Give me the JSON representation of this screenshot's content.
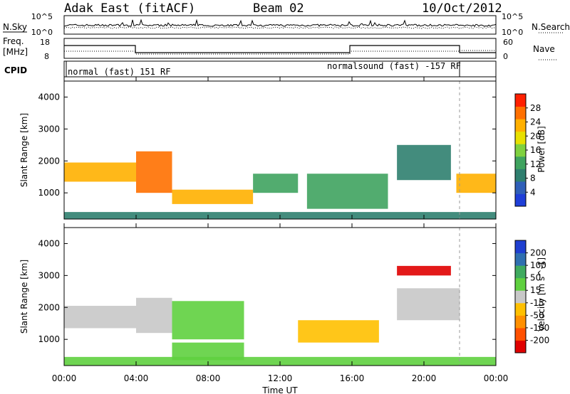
{
  "header": {
    "radar": "Adak East (fitACF)",
    "beam": "Beam 02",
    "date": "10/Oct/2012"
  },
  "noise_panel": {
    "left_label": "N.Sky",
    "right_label": "N.Search",
    "y_ticks": [
      "10^5",
      "10^0"
    ]
  },
  "freq_panel": {
    "left_label_line1": "Freq.",
    "left_label_line2": "[MHz]",
    "right_label": "Nave",
    "left_ticks": [
      "18",
      "8"
    ],
    "right_ticks": [
      "60",
      "0"
    ]
  },
  "cpid_panel": {
    "label": "CPID",
    "modes": [
      "normal (fast) 151 RF",
      "normalsound (fast) -157 RF"
    ]
  },
  "x_axis": {
    "label": "Time UT",
    "ticks": [
      "00:00",
      "04:00",
      "08:00",
      "12:00",
      "16:00",
      "20:00",
      "00:00"
    ]
  },
  "chart_data": [
    {
      "type": "heatmap",
      "title": "",
      "xlabel": "Time UT",
      "ylabel": "Slant Range [km]",
      "x_unit": "hours UT",
      "xlim": [
        0,
        24
      ],
      "ylim": [
        180,
        4500
      ],
      "y_ticks": [
        1000,
        2000,
        3000,
        4000
      ],
      "colorbar": {
        "label": "Power [dB]",
        "range": [
          0,
          32
        ],
        "ticks": [
          4,
          8,
          12,
          16,
          20,
          24,
          28
        ],
        "colors": [
          "#1f3fd8",
          "#2f5fb8",
          "#2f7f6f",
          "#3fa35f",
          "#7fd13f",
          "#e8e000",
          "#ffb000",
          "#ff7000",
          "#ff2000"
        ]
      },
      "features": [
        {
          "t": [
            0.0,
            4.0
          ],
          "range_km": [
            1350,
            1950
          ],
          "value": 22
        },
        {
          "t": [
            4.0,
            6.0
          ],
          "range_km": [
            1000,
            2300
          ],
          "value": 26
        },
        {
          "t": [
            6.0,
            10.5
          ],
          "range_km": [
            650,
            1100
          ],
          "value": 24
        },
        {
          "t": [
            10.5,
            13.0
          ],
          "range_km": [
            1000,
            1600
          ],
          "value": 12
        },
        {
          "t": [
            13.5,
            18.0
          ],
          "range_km": [
            500,
            1600
          ],
          "value": 14
        },
        {
          "t": [
            18.5,
            21.5
          ],
          "range_km": [
            1400,
            2500
          ],
          "value": 8
        },
        {
          "t": [
            21.8,
            24.0
          ],
          "range_km": [
            1000,
            1600
          ],
          "value": 22
        },
        {
          "t": [
            0.0,
            24.0
          ],
          "range_km": [
            180,
            400
          ],
          "value": 10
        }
      ]
    },
    {
      "type": "heatmap",
      "title": "",
      "xlabel": "Time UT",
      "ylabel": "Slant Range [km]",
      "x_unit": "hours UT",
      "xlim": [
        0,
        24
      ],
      "ylim": [
        180,
        4500
      ],
      "y_ticks": [
        1000,
        2000,
        3000,
        4000
      ],
      "colorbar": {
        "label": "Velocity [m s^-1]",
        "range": [
          -250,
          250
        ],
        "ticks": [
          200,
          100,
          50,
          15,
          -15,
          -50,
          -100,
          -200
        ],
        "colors": [
          "#e00000",
          "#ff5000",
          "#ff9000",
          "#ffc000",
          "#c8c8c8",
          "#5fd03f",
          "#3faa5f",
          "#2f6fb0",
          "#1f3fd0"
        ]
      },
      "features": [
        {
          "t": [
            0.0,
            4.0
          ],
          "range_km": [
            1350,
            2050
          ],
          "value": 0
        },
        {
          "t": [
            4.0,
            6.0
          ],
          "range_km": [
            1200,
            2300
          ],
          "value": 0
        },
        {
          "t": [
            6.0,
            10.0
          ],
          "range_km": [
            1000,
            2200
          ],
          "value": 60
        },
        {
          "t": [
            6.0,
            10.0
          ],
          "range_km": [
            350,
            900
          ],
          "value": 40
        },
        {
          "t": [
            13.0,
            17.5
          ],
          "range_km": [
            900,
            1600
          ],
          "value": -60
        },
        {
          "t": [
            18.5,
            21.5
          ],
          "range_km": [
            3000,
            3300
          ],
          "value": -200
        },
        {
          "t": [
            18.5,
            22.0
          ],
          "range_km": [
            1600,
            2600
          ],
          "value": 0
        },
        {
          "t": [
            0.0,
            24.0
          ],
          "range_km": [
            180,
            450
          ],
          "value": 30
        }
      ]
    }
  ]
}
